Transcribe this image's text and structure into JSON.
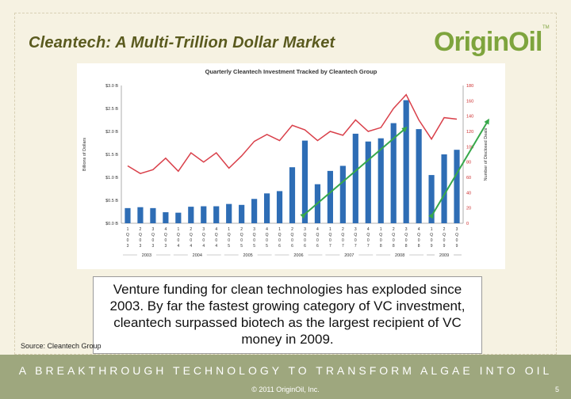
{
  "slide": {
    "title": "Cleantech: A Multi-Trillion Dollar Market",
    "logo_text": "OriginOil",
    "logo_tm": "TM",
    "callout": "Venture funding for clean technologies has exploded since 2003. By far the fastest growing category of VC investment, cleantech surpassed biotech as the largest recipient of VC money in 2009.",
    "source": "Source: Cleantech Group",
    "tagline": "A BREAKTHROUGH TECHNOLOGY TO TRANSFORM ALGAE INTO OIL",
    "copyright": "© 2011 OriginOil, Inc.",
    "page_number": "5",
    "colors": {
      "background": "#f6f2e2",
      "title": "#5a5a1e",
      "logo": "#7ea43d",
      "banner": "#9ea77e",
      "bar": "#2e6db5",
      "line": "#d9404a",
      "arrow": "#37a84a"
    }
  },
  "chart_data": {
    "type": "bar",
    "title": "Quarterly Cleantech Investment Tracked by Cleantech Group",
    "ylabel": "Billions of Dollars",
    "y2label": "Number of Disclosed Deals",
    "ylim": [
      0,
      3.0
    ],
    "y2lim": [
      0,
      180
    ],
    "y_ticks": [
      "$0.0 B",
      "$0.5 B",
      "$1.0 B",
      "$1.5 B",
      "$2.0 B",
      "$2.5 B",
      "$3.0 B"
    ],
    "y2_ticks": [
      "0",
      "20",
      "40",
      "60",
      "80",
      "100",
      "120",
      "140",
      "160",
      "180"
    ],
    "quarters": [
      "1",
      "2",
      "3",
      "4",
      "1",
      "2",
      "3",
      "4",
      "1",
      "2",
      "3",
      "4",
      "1",
      "2",
      "3",
      "4",
      "1",
      "2",
      "3",
      "4",
      "1",
      "2",
      "3",
      "4",
      "1",
      "2",
      "3"
    ],
    "quarter_prefix": "Q",
    "quarter_years": [
      "0\n3",
      "0\n3",
      "0\n3",
      "0\n3",
      "0\n4",
      "0\n4",
      "0\n4",
      "0\n4",
      "0\n5",
      "0\n5",
      "0\n5",
      "0\n5",
      "0\n6",
      "0\n6",
      "0\n6",
      "0\n6",
      "0\n7",
      "0\n7",
      "0\n7",
      "0\n7",
      "0\n8",
      "0\n8",
      "0\n8",
      "0\n8",
      "0\n9",
      "0\n9",
      "0\n9"
    ],
    "years": [
      "2003",
      "2004",
      "2005",
      "2006",
      "2007",
      "2008",
      "2009"
    ],
    "series": [
      {
        "name": "Investment",
        "kind": "bar",
        "values": [
          0.33,
          0.35,
          0.33,
          0.24,
          0.23,
          0.36,
          0.37,
          0.37,
          0.42,
          0.4,
          0.53,
          0.65,
          0.7,
          1.22,
          1.8,
          0.85,
          1.14,
          1.25,
          1.95,
          1.78,
          1.85,
          2.18,
          2.68,
          2.05,
          1.05,
          1.5,
          1.6
        ]
      },
      {
        "name": "Deals",
        "kind": "line",
        "values": [
          75,
          65,
          70,
          85,
          68,
          92,
          80,
          92,
          72,
          88,
          107,
          116,
          108,
          128,
          122,
          108,
          120,
          115,
          135,
          120,
          125,
          150,
          168,
          135,
          110,
          138,
          136
        ]
      }
    ],
    "annotations": [
      {
        "type": "arrow",
        "from": [
          14.5,
          0.2
        ],
        "to": [
          22.5,
          2.08
        ]
      },
      {
        "type": "arrow",
        "from": [
          24.6,
          0.2
        ],
        "to": [
          29.0,
          2.25
        ]
      }
    ],
    "grid": false
  }
}
